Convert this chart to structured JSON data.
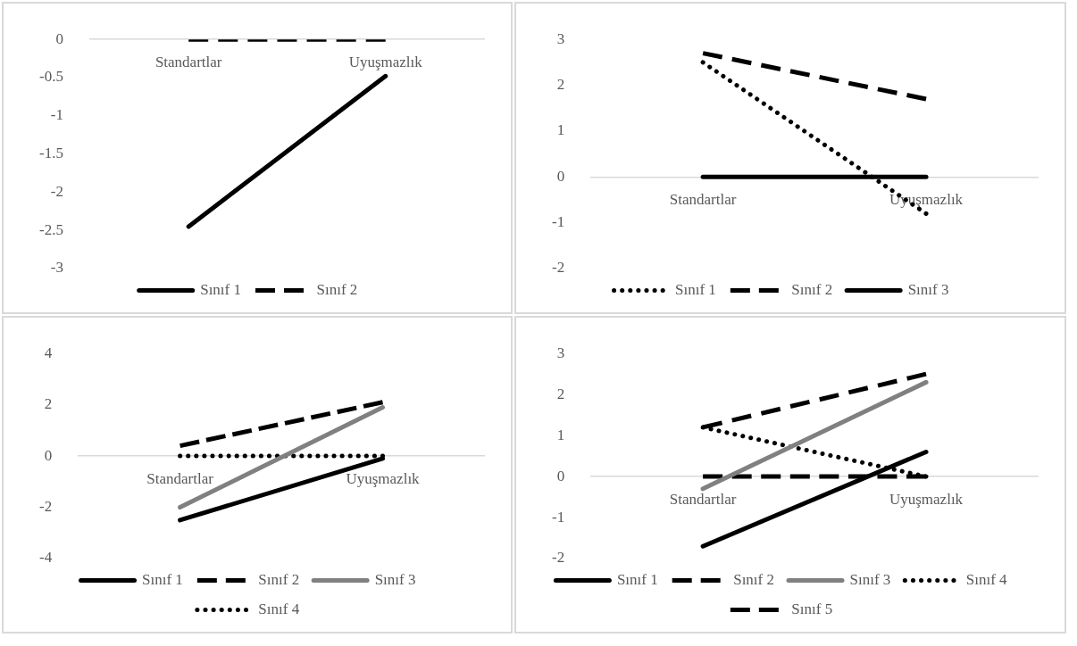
{
  "chart_data": [
    {
      "type": "line",
      "categories": [
        "Standartlar",
        "Uyuşmazlık"
      ],
      "series": [
        {
          "name": "Sınıf 1",
          "color": "#000000",
          "values": [
            -2.45,
            -0.48
          ],
          "line_style": "solid"
        },
        {
          "name": "Sınıf 2",
          "color": "#000000",
          "values": [
            0,
            0
          ],
          "line_style": "dashed"
        }
      ],
      "ylim": [
        -3,
        0
      ],
      "yticks": [
        0,
        -0.5,
        -1,
        -1.5,
        -2,
        -2.5,
        -3
      ],
      "grid": false,
      "legend": "bottom"
    },
    {
      "type": "line",
      "categories": [
        "Standartlar",
        "Uyuşmazlık"
      ],
      "series": [
        {
          "name": "Sınıf 1",
          "color": "#000000",
          "values": [
            2.5,
            -0.8
          ],
          "line_style": "dotted"
        },
        {
          "name": "Sınıf 2",
          "color": "#000000",
          "values": [
            2.7,
            1.7
          ],
          "line_style": "dashed"
        },
        {
          "name": "Sınıf 3",
          "color": "#000000",
          "values": [
            0,
            0
          ],
          "line_style": "solid"
        }
      ],
      "ylim": [
        -2,
        3
      ],
      "yticks": [
        3,
        2,
        1,
        0,
        -1,
        -2
      ],
      "grid": false,
      "legend": "bottom"
    },
    {
      "type": "line",
      "categories": [
        "Standartlar",
        "Uyuşmazlık"
      ],
      "series": [
        {
          "name": "Sınıf 1",
          "color": "#000000",
          "values": [
            -2.5,
            -0.1
          ],
          "line_style": "solid"
        },
        {
          "name": "Sınıf 2",
          "color": "#000000",
          "values": [
            0.4,
            2.1
          ],
          "line_style": "dashed"
        },
        {
          "name": "Sınıf 3",
          "color": "#808080",
          "values": [
            -2,
            1.9
          ],
          "line_style": "solid"
        },
        {
          "name": "Sınıf 4",
          "color": "#000000",
          "values": [
            0,
            0
          ],
          "line_style": "dotted"
        }
      ],
      "ylim": [
        -4,
        4
      ],
      "yticks": [
        4,
        2,
        0,
        -2,
        -4
      ],
      "grid": false,
      "legend": "bottom"
    },
    {
      "type": "line",
      "categories": [
        "Standartlar",
        "Uyuşmazlık"
      ],
      "series": [
        {
          "name": "Sınıf 1",
          "color": "#000000",
          "values": [
            -1.7,
            0.6
          ],
          "line_style": "solid"
        },
        {
          "name": "Sınıf 2",
          "color": "#000000",
          "values": [
            1.2,
            2.5
          ],
          "line_style": "dashed"
        },
        {
          "name": "Sınıf 3",
          "color": "#808080",
          "values": [
            -0.3,
            2.3
          ],
          "line_style": "solid"
        },
        {
          "name": "Sınıf 4",
          "color": "#000000",
          "values": [
            1.2,
            0
          ],
          "line_style": "dotted"
        },
        {
          "name": "Sınıf 5",
          "color": "#000000",
          "values": [
            0,
            0
          ],
          "line_style": "dashed"
        }
      ],
      "ylim": [
        -2,
        3
      ],
      "yticks": [
        3,
        2,
        1,
        0,
        -1,
        -2
      ],
      "grid": false,
      "legend": "bottom"
    }
  ]
}
